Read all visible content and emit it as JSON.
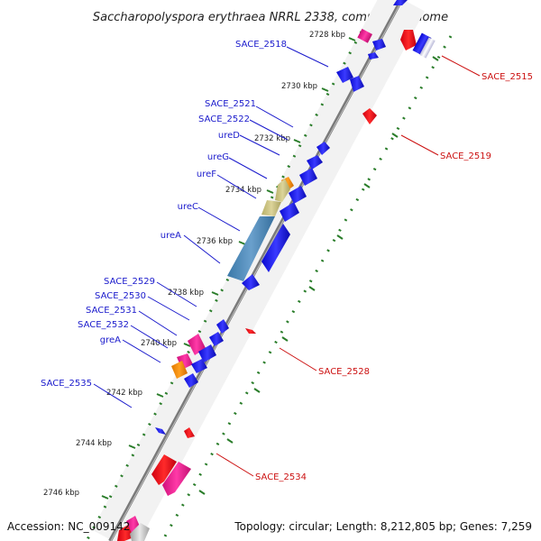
{
  "title": "Saccharopolyspora erythraea NRRL 2338, complete genome",
  "footer": {
    "accession": "Accession: NC_009142",
    "summary": "Topology: circular; Length: 8,212,805 bp; Genes: 7,259"
  },
  "colors": {
    "backbone": "#888888",
    "ticks": "#2a7d2a",
    "left_label": "#1a1acc",
    "right_label": "#cc1111",
    "forward_gene": "#1a1ae0",
    "reverse_gene": "#e0101a",
    "pink_gene": "#e8158a",
    "orange_gene": "#ff8c00",
    "tan_block": "#c8c07a",
    "steel_block": "#4a86b4"
  },
  "scale": {
    "ticks": [
      {
        "label": "2728 kbp",
        "kbp": 2728
      },
      {
        "label": "2730 kbp",
        "kbp": 2730
      },
      {
        "label": "2732 kbp",
        "kbp": 2732
      },
      {
        "label": "2734 kbp",
        "kbp": 2734
      },
      {
        "label": "2736 kbp",
        "kbp": 2736
      },
      {
        "label": "2738 kbp",
        "kbp": 2738
      },
      {
        "label": "2740 kbp",
        "kbp": 2740
      },
      {
        "label": "2742 kbp",
        "kbp": 2742
      },
      {
        "label": "2744 kbp",
        "kbp": 2744
      },
      {
        "label": "2746 kbp",
        "kbp": 2746
      }
    ]
  },
  "forward_labels": [
    "SACE_2518",
    "SACE_2521",
    "SACE_2522",
    "ureD",
    "ureG",
    "ureF",
    "ureC",
    "ureA",
    "SACE_2529",
    "SACE_2530",
    "SACE_2531",
    "SACE_2532",
    "greA",
    "SACE_2535"
  ],
  "reverse_labels": [
    "SACE_2515",
    "SACE_2519",
    "SACE_2528",
    "SACE_2534"
  ]
}
